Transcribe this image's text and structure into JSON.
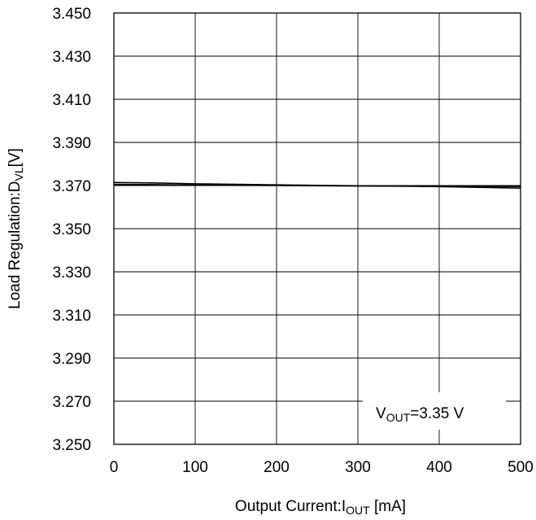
{
  "chart_data": {
    "type": "line",
    "xlabel": {
      "main": "Output Current:I",
      "sub": "OUT",
      "suffix": " [mA]"
    },
    "ylabel": {
      "main": "Load Regulation:D",
      "sub": "VL",
      "suffix": "[V]"
    },
    "xlim": [
      0,
      500
    ],
    "ylim": [
      3.25,
      3.45
    ],
    "x_ticks": [
      0,
      100,
      200,
      300,
      400,
      500
    ],
    "x_tick_labels": [
      "0",
      "100",
      "200",
      "300",
      "400",
      "500"
    ],
    "y_ticks": [
      3.25,
      3.27,
      3.29,
      3.31,
      3.33,
      3.35,
      3.37,
      3.39,
      3.41,
      3.43,
      3.45
    ],
    "y_tick_labels": [
      "3.250",
      "3.270",
      "3.290",
      "3.310",
      "3.330",
      "3.350",
      "3.370",
      "3.390",
      "3.410",
      "3.430",
      "3.450"
    ],
    "grid": true,
    "annotation": {
      "main": "V",
      "sub": "OUT",
      "suffix": "=3.35 V",
      "placement": "bottom-right"
    },
    "series": [
      {
        "x": [
          0,
          50,
          100,
          200,
          300,
          400,
          500
        ],
        "y": [
          3.3714,
          3.3712,
          3.3708,
          3.3703,
          3.3699,
          3.3695,
          3.3688
        ],
        "color": "#000000"
      },
      {
        "x": [
          0,
          50,
          100,
          200,
          300,
          400,
          500
        ],
        "y": [
          3.3705,
          3.3704,
          3.3702,
          3.37,
          3.3698,
          3.3697,
          3.3696
        ],
        "color": "#000000"
      }
    ]
  }
}
